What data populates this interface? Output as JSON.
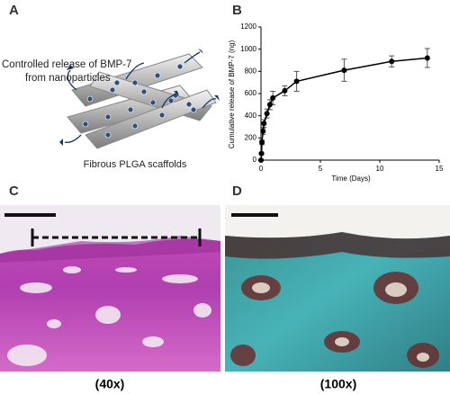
{
  "panel_a": {
    "label": "A",
    "release_text": [
      "Controlled release of BMP-7",
      "from nanoparticles"
    ],
    "scaffold_text": "Fibrous PLGA scaffolds"
  },
  "chart_data": {
    "type": "line",
    "label": "B",
    "xlabel": "Time (Days)",
    "ylabel": "Cumulative release of BMP-7 (ng)",
    "x": [
      0,
      0.04,
      0.08,
      0.17,
      0.25,
      0.5,
      0.75,
      1,
      2,
      3,
      7,
      11,
      14
    ],
    "values": [
      0,
      60,
      160,
      260,
      330,
      420,
      500,
      560,
      625,
      710,
      810,
      890,
      920
    ],
    "errors": [
      5,
      10,
      20,
      30,
      35,
      40,
      45,
      60,
      45,
      90,
      100,
      50,
      85
    ],
    "color": "#000000",
    "xlim": [
      0,
      15
    ],
    "xticks": [
      0,
      5,
      10,
      15
    ],
    "ylim": [
      0,
      1200
    ],
    "yticks": [
      0,
      200,
      400,
      600,
      800,
      1000,
      1200
    ]
  },
  "panel_c": {
    "label": "C",
    "magnification": "(40x)"
  },
  "panel_d": {
    "label": "D",
    "magnification": "(100x)"
  }
}
